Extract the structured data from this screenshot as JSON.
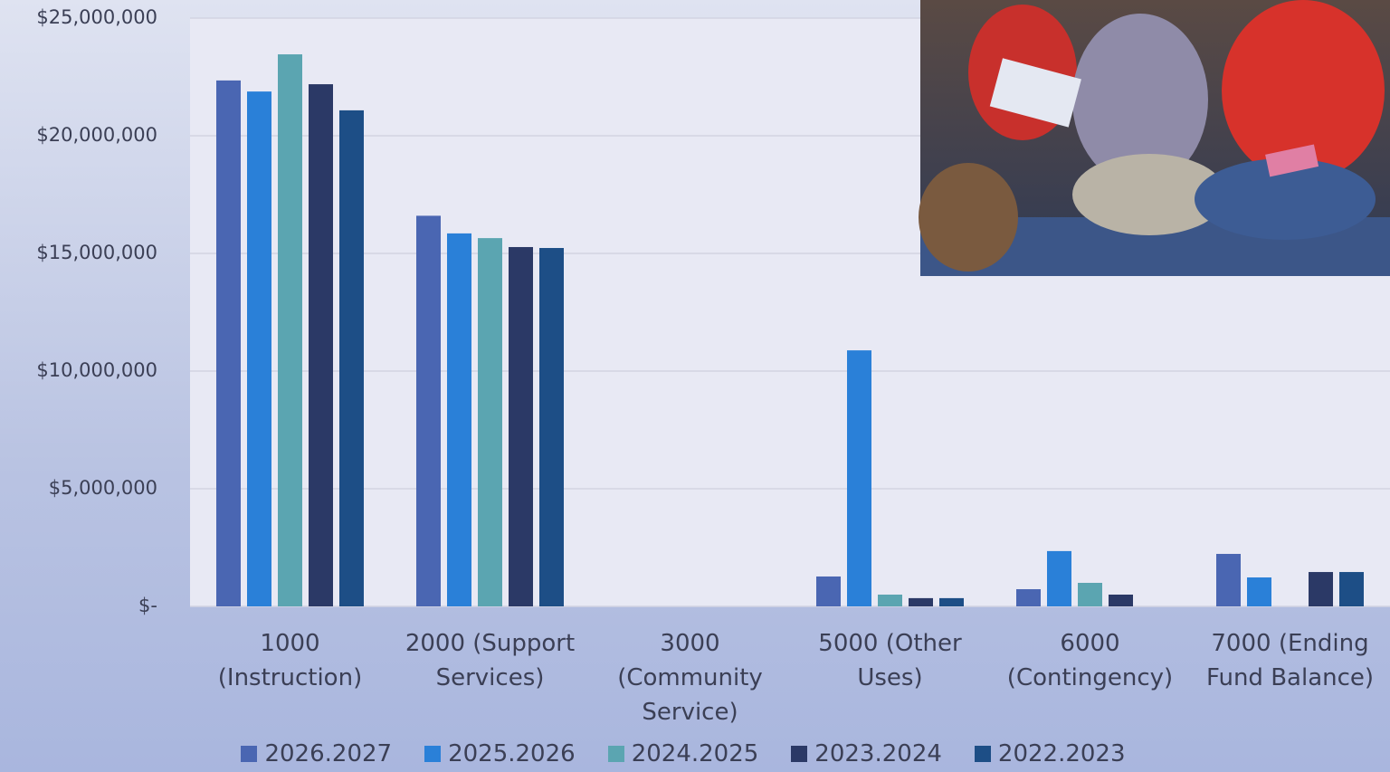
{
  "chart_data": {
    "type": "bar",
    "categories": [
      "1000 (Instruction)",
      "2000 (Support Services)",
      "3000 (Community Service)",
      "5000 (Other Uses)",
      "6000 (Contingency)",
      "7000 (Ending Fund Balance)"
    ],
    "series": [
      {
        "name": "2026.2027",
        "color": "#4a66b2",
        "values": [
          22350000,
          16600000,
          0,
          1270000,
          730000,
          2230000
        ]
      },
      {
        "name": "2025.2026",
        "color": "#2a80d8",
        "values": [
          21880000,
          15850000,
          0,
          10880000,
          2350000,
          1230000
        ]
      },
      {
        "name": "2024.2025",
        "color": "#5ba5b1",
        "values": [
          23460000,
          15650000,
          0,
          500000,
          1000000,
          0
        ]
      },
      {
        "name": "2023.2024",
        "color": "#2b3966",
        "values": [
          22190000,
          15270000,
          0,
          350000,
          500000,
          1460000
        ]
      },
      {
        "name": "2022.2023",
        "color": "#1d4e86",
        "values": [
          21080000,
          15230000,
          0,
          350000,
          0,
          1460000
        ]
      }
    ],
    "ylim": [
      0,
      25000000
    ],
    "yticks": [
      {
        "value": 0,
        "label": "$-"
      },
      {
        "value": 5000000,
        "label": "$5,000,000"
      },
      {
        "value": 10000000,
        "label": "$10,000,000"
      },
      {
        "value": 15000000,
        "label": "$15,000,000"
      },
      {
        "value": 20000000,
        "label": "$20,000,000"
      },
      {
        "value": 25000000,
        "label": "$25,000,000"
      }
    ],
    "grid": true
  }
}
